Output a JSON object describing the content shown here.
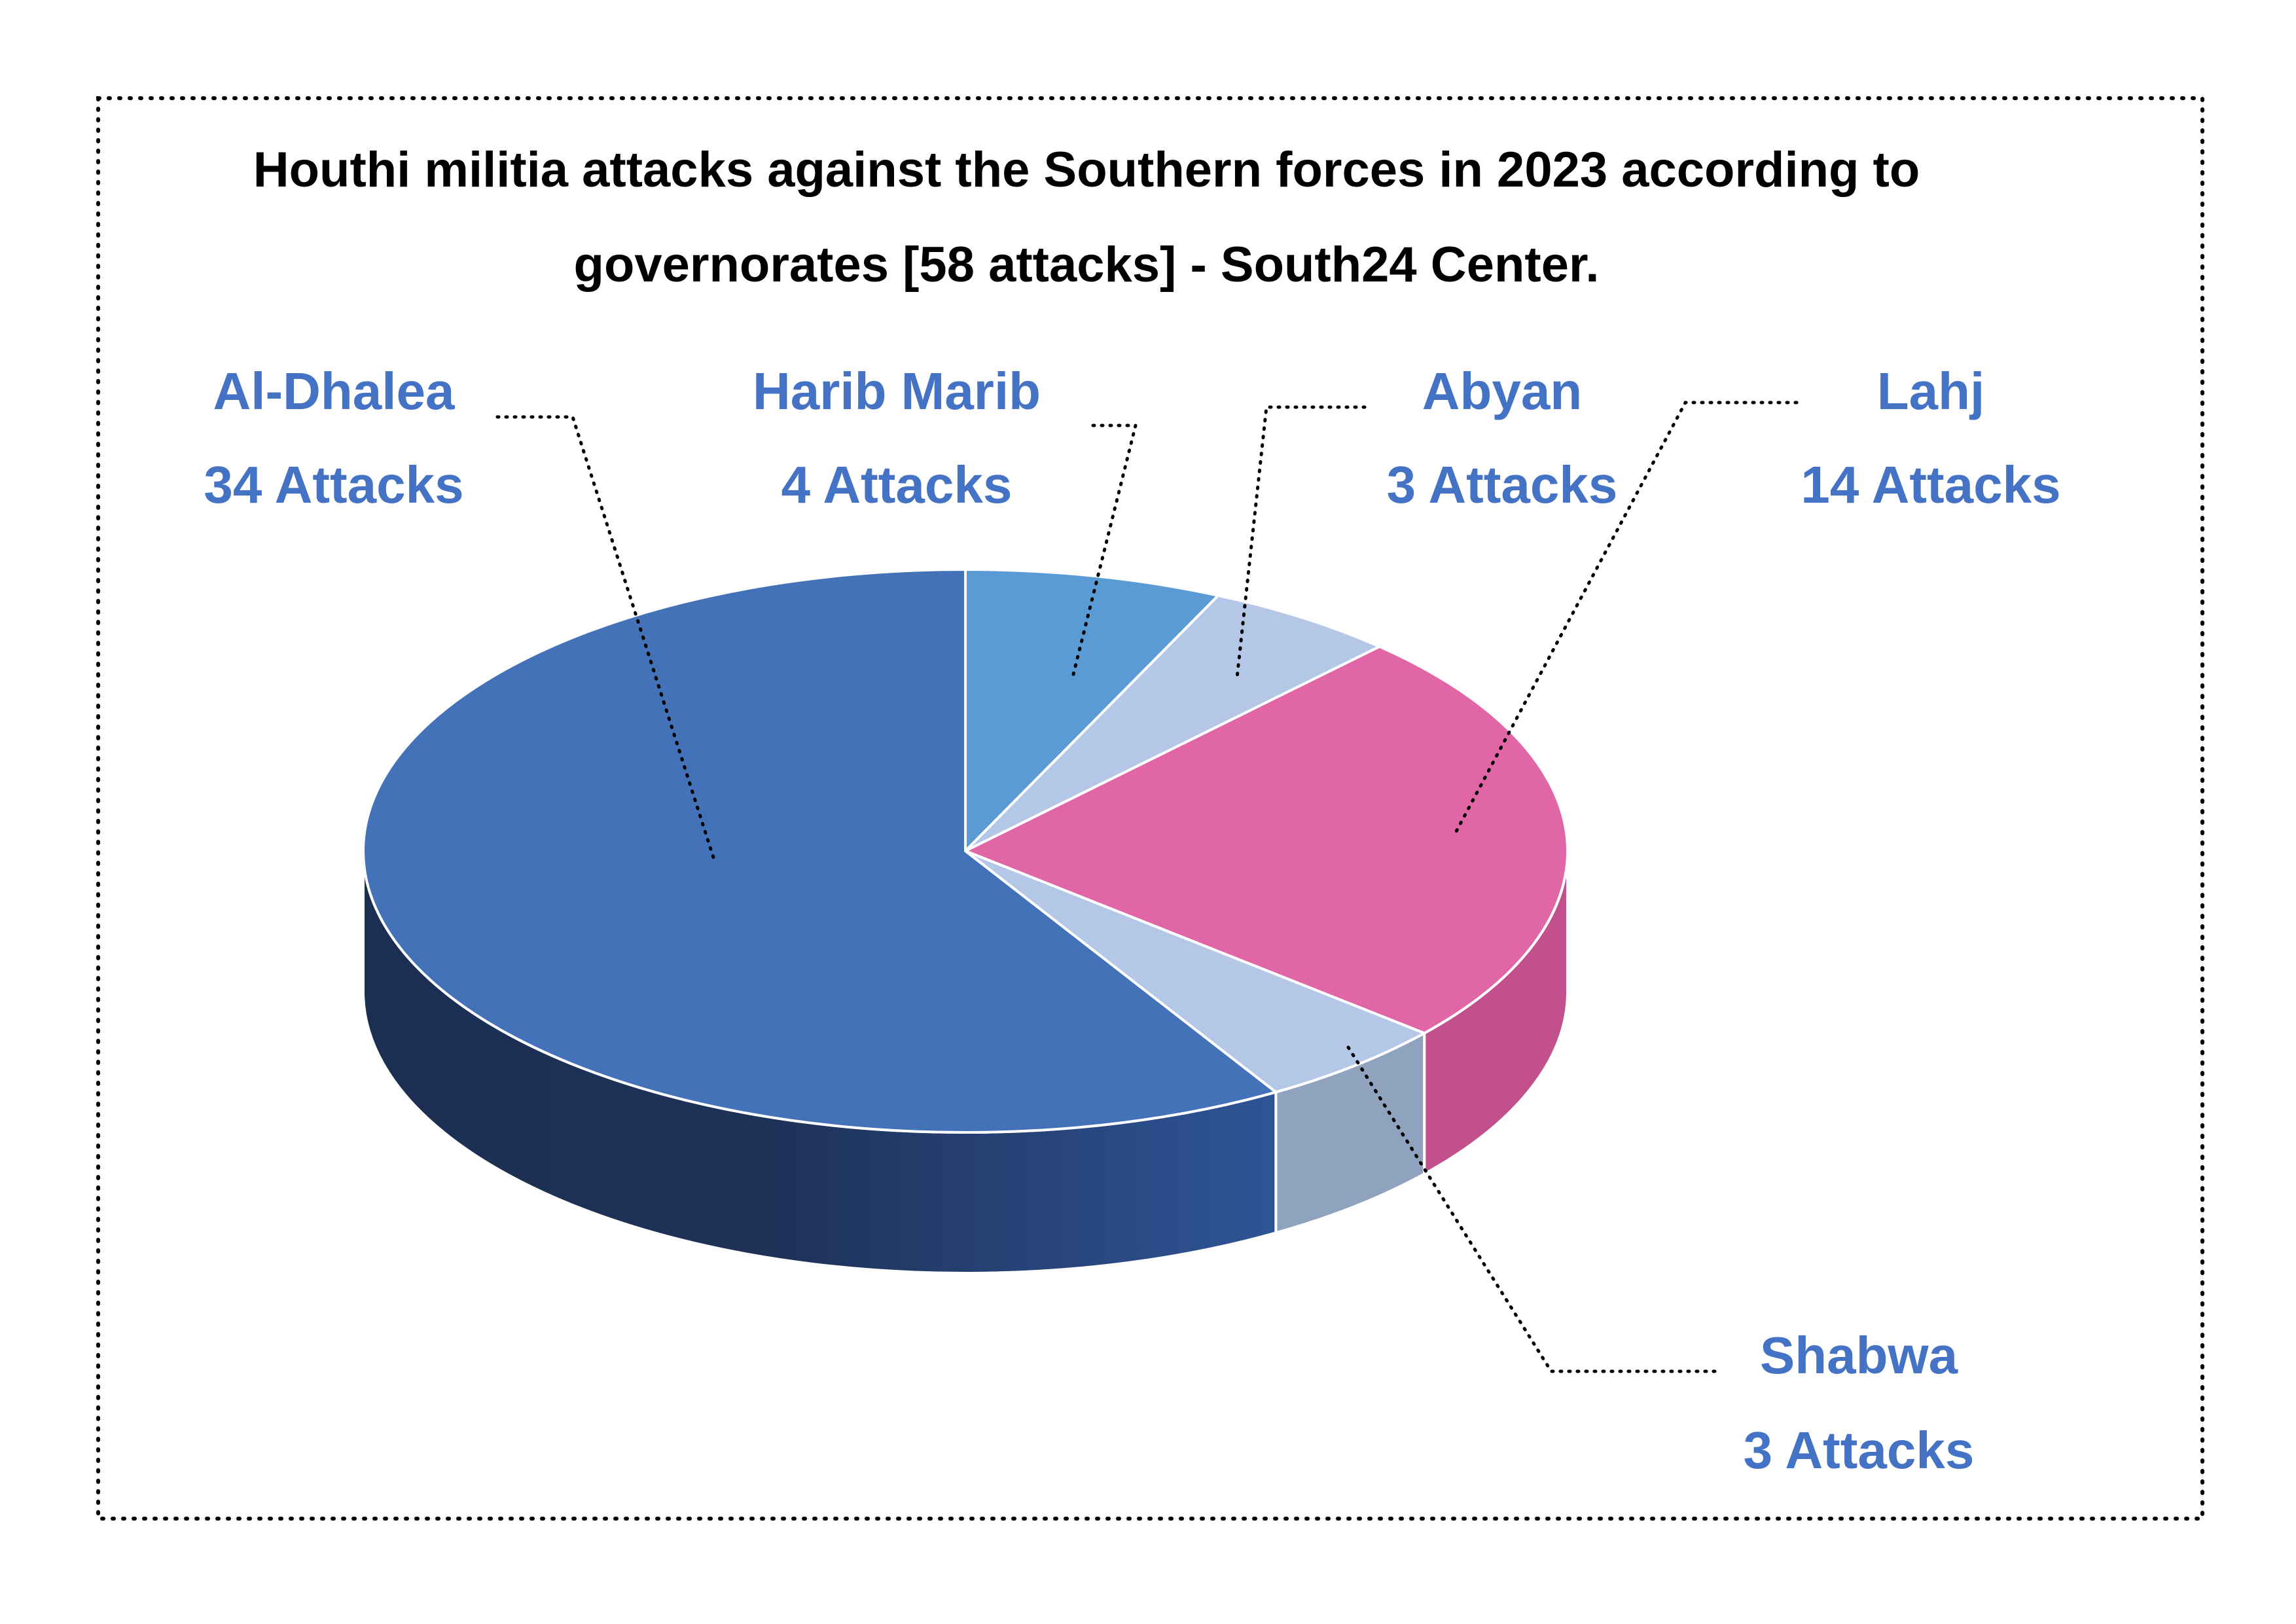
{
  "chart_data": {
    "type": "pie",
    "variant": "3d",
    "title_lines": [
      "Houthi militia attacks against the Southern forces in 2023 according to",
      "governorates [58 attacks] - South24 Center."
    ],
    "slices": [
      {
        "name": "Harib Marib",
        "value": 4,
        "value_label": "4 Attacks",
        "color": "#5B9BD5",
        "side_color": "#4A82B8",
        "label_color": "#4472C4"
      },
      {
        "name": "Abyan",
        "value": 3,
        "value_label": "3 Attacks",
        "color": "#B4C7E7",
        "side_color": "#8FA2BE",
        "label_color": "#4472C4"
      },
      {
        "name": "Lahj",
        "value": 14,
        "value_label": "14 Attacks",
        "color": "#E066A6",
        "side_color": "#C2508C",
        "label_color": "#4472C4"
      },
      {
        "name": "Shabwa",
        "value": 3,
        "value_label": "3 Attacks",
        "color": "#B4C7E7",
        "side_color": "#8FA2BE",
        "label_color": "#4472C4"
      },
      {
        "name": "Al-Dhalea",
        "value": 34,
        "value_label": "34 Attacks",
        "color": "#4472B8",
        "side_color": "#213A66",
        "label_color": "#4472C4"
      }
    ],
    "start_position": "12 o'clock",
    "direction": "clockwise",
    "legend": "none",
    "frame": "dotted border"
  }
}
